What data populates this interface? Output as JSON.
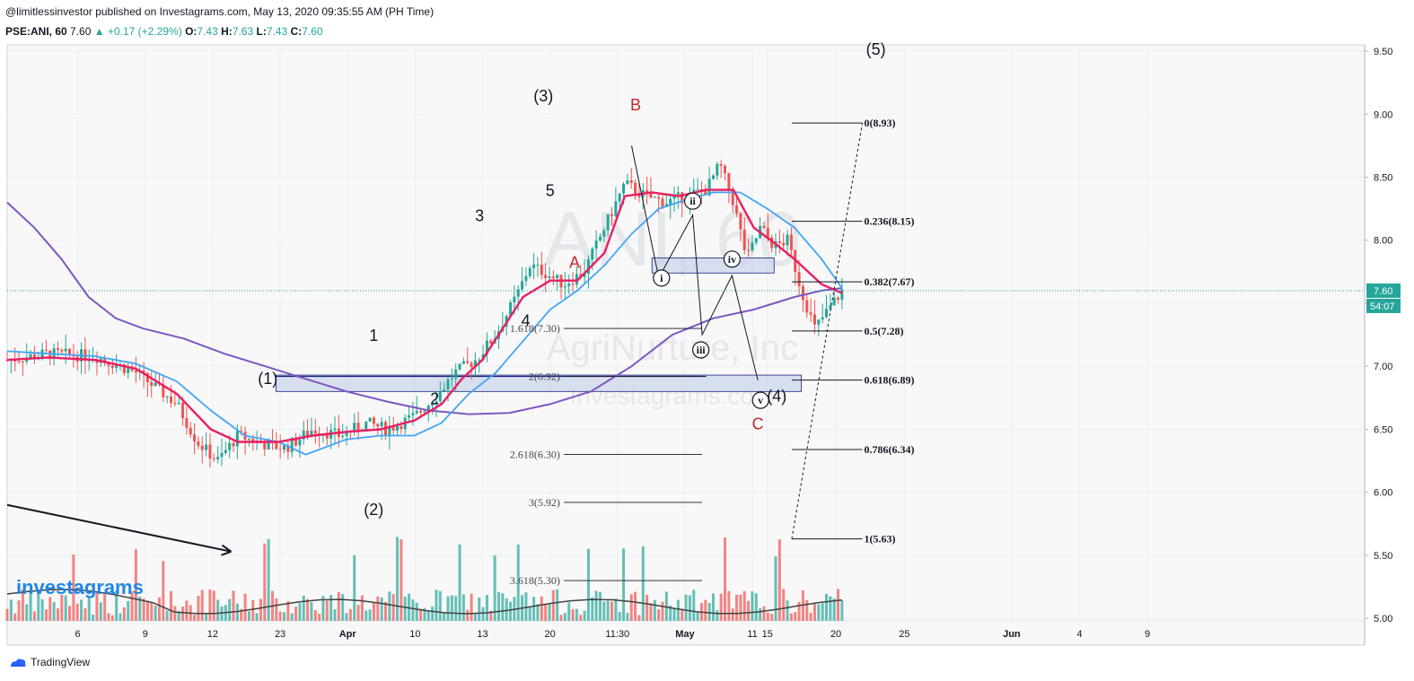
{
  "header": {
    "published": "@limitlessinvestor published on Investagrams.com, May 13, 2020 09:35:55 AM (PH Time)",
    "symbol": "PSE:ANI, 60",
    "last": "7.60",
    "change": "+0.17 (+2.29%)",
    "o_label": "O:",
    "o": "7.43",
    "h_label": "H:",
    "h": "7.63",
    "l_label": "L:",
    "l": "7.43",
    "c_label": "C:",
    "c": "7.60"
  },
  "footer": {
    "brand": "TradingView",
    "watermark_logo": "investagrams"
  },
  "watermark": {
    "line1": "ANI, 60",
    "line2": "AgriNurture, Inc",
    "line3": "Investagrams.com"
  },
  "colors": {
    "up": "#26a69a",
    "down": "#ef5350",
    "ema_fast": "#e91e63",
    "ema_mid": "#42a5f5",
    "ema_slow": "#7e57c2",
    "zone_fill": "#c5cfe8",
    "zone_stroke": "#1a237e",
    "wave_red": "#c62828",
    "price_line": "#26a69a"
  },
  "chart_data": {
    "type": "candlestick",
    "instrument": "PSE:ANI",
    "interval": "60",
    "ylim": [
      4.98,
      9.55
    ],
    "y_ticks": [
      "9.50",
      "9.00",
      "8.50",
      "8.00",
      "7.50",
      "7.00",
      "6.50",
      "6.00",
      "5.50",
      "5.00"
    ],
    "x_ticks": [
      "6",
      "9",
      "12",
      "23",
      "Apr",
      "10",
      "13",
      "20",
      "11:30",
      "May",
      "11",
      "15",
      "20",
      "25",
      "Jun",
      "4",
      "9"
    ],
    "last_price_label": "7.60",
    "countdown_label": "54:07",
    "price_path": [
      [
        0,
        7.05
      ],
      [
        0.03,
        7.1
      ],
      [
        0.065,
        7.08
      ],
      [
        0.095,
        6.95
      ],
      [
        0.125,
        6.7
      ],
      [
        0.14,
        6.4
      ],
      [
        0.155,
        6.25
      ],
      [
        0.17,
        6.45
      ],
      [
        0.19,
        6.38
      ],
      [
        0.205,
        6.35
      ],
      [
        0.225,
        6.5
      ],
      [
        0.245,
        6.45
      ],
      [
        0.265,
        6.55
      ],
      [
        0.28,
        6.5
      ],
      [
        0.3,
        6.6
      ],
      [
        0.315,
        6.75
      ],
      [
        0.33,
        6.95
      ],
      [
        0.345,
        7.05
      ],
      [
        0.36,
        7.25
      ],
      [
        0.375,
        7.55
      ],
      [
        0.385,
        7.8
      ],
      [
        0.395,
        7.75
      ],
      [
        0.41,
        7.65
      ],
      [
        0.425,
        7.75
      ],
      [
        0.44,
        8.1
      ],
      [
        0.455,
        8.45
      ],
      [
        0.47,
        8.35
      ],
      [
        0.485,
        8.3
      ],
      [
        0.5,
        8.35
      ],
      [
        0.515,
        8.4
      ],
      [
        0.525,
        8.6
      ],
      [
        0.535,
        8.3
      ],
      [
        0.545,
        7.85
      ],
      [
        0.555,
        8.1
      ],
      [
        0.565,
        7.95
      ],
      [
        0.575,
        8.0
      ],
      [
        0.585,
        7.6
      ],
      [
        0.595,
        7.3
      ],
      [
        0.605,
        7.45
      ],
      [
        0.615,
        7.6
      ]
    ],
    "ema_fast": [
      [
        0,
        7.05
      ],
      [
        0.03,
        7.07
      ],
      [
        0.065,
        7.05
      ],
      [
        0.095,
        6.98
      ],
      [
        0.125,
        6.78
      ],
      [
        0.15,
        6.5
      ],
      [
        0.17,
        6.4
      ],
      [
        0.2,
        6.4
      ],
      [
        0.225,
        6.45
      ],
      [
        0.25,
        6.48
      ],
      [
        0.275,
        6.5
      ],
      [
        0.3,
        6.57
      ],
      [
        0.32,
        6.7
      ],
      [
        0.335,
        6.9
      ],
      [
        0.35,
        7.05
      ],
      [
        0.365,
        7.3
      ],
      [
        0.38,
        7.55
      ],
      [
        0.4,
        7.68
      ],
      [
        0.42,
        7.68
      ],
      [
        0.44,
        7.9
      ],
      [
        0.455,
        8.35
      ],
      [
        0.475,
        8.38
      ],
      [
        0.495,
        8.35
      ],
      [
        0.515,
        8.4
      ],
      [
        0.535,
        8.4
      ],
      [
        0.55,
        8.1
      ],
      [
        0.565,
        7.98
      ],
      [
        0.58,
        7.85
      ],
      [
        0.6,
        7.65
      ],
      [
        0.615,
        7.58
      ]
    ],
    "ema_mid": [
      [
        0,
        7.12
      ],
      [
        0.03,
        7.1
      ],
      [
        0.065,
        7.08
      ],
      [
        0.095,
        7.02
      ],
      [
        0.125,
        6.88
      ],
      [
        0.15,
        6.65
      ],
      [
        0.175,
        6.45
      ],
      [
        0.2,
        6.4
      ],
      [
        0.22,
        6.3
      ],
      [
        0.25,
        6.42
      ],
      [
        0.275,
        6.45
      ],
      [
        0.3,
        6.45
      ],
      [
        0.32,
        6.55
      ],
      [
        0.34,
        6.78
      ],
      [
        0.36,
        6.95
      ],
      [
        0.38,
        7.2
      ],
      [
        0.4,
        7.45
      ],
      [
        0.42,
        7.6
      ],
      [
        0.44,
        7.8
      ],
      [
        0.46,
        8.05
      ],
      [
        0.48,
        8.25
      ],
      [
        0.5,
        8.32
      ],
      [
        0.52,
        8.38
      ],
      [
        0.54,
        8.38
      ],
      [
        0.56,
        8.25
      ],
      [
        0.58,
        8.1
      ],
      [
        0.6,
        7.85
      ],
      [
        0.615,
        7.62
      ]
    ],
    "ema_slow": [
      [
        0,
        8.3
      ],
      [
        0.02,
        8.1
      ],
      [
        0.04,
        7.85
      ],
      [
        0.06,
        7.55
      ],
      [
        0.08,
        7.38
      ],
      [
        0.1,
        7.3
      ],
      [
        0.13,
        7.22
      ],
      [
        0.16,
        7.1
      ],
      [
        0.19,
        7.0
      ],
      [
        0.22,
        6.9
      ],
      [
        0.25,
        6.8
      ],
      [
        0.28,
        6.72
      ],
      [
        0.31,
        6.65
      ],
      [
        0.34,
        6.62
      ],
      [
        0.37,
        6.63
      ],
      [
        0.4,
        6.7
      ],
      [
        0.43,
        6.8
      ],
      [
        0.46,
        7.0
      ],
      [
        0.49,
        7.25
      ],
      [
        0.52,
        7.38
      ],
      [
        0.55,
        7.45
      ],
      [
        0.58,
        7.55
      ],
      [
        0.6,
        7.6
      ],
      [
        0.615,
        7.62
      ]
    ],
    "fib_retracement": [
      {
        "label": "0(8.93)",
        "value": 8.93
      },
      {
        "label": "0.236(8.15)",
        "value": 8.15
      },
      {
        "label": "0.382(7.67)",
        "value": 7.67
      },
      {
        "label": "0.5(7.28)",
        "value": 7.28
      },
      {
        "label": "0.618(6.89)",
        "value": 6.89
      },
      {
        "label": "0.786(6.34)",
        "value": 6.34
      },
      {
        "label": "1(5.63)",
        "value": 5.63
      }
    ],
    "fib_extension": [
      {
        "label": "1.618(7.30)",
        "value": 7.3
      },
      {
        "label": "2(6.92)",
        "value": 6.92
      },
      {
        "label": "2.618(6.30)",
        "value": 6.3
      },
      {
        "label": "3(5.92)",
        "value": 5.92
      },
      {
        "label": "3.618(5.30)",
        "value": 5.3
      }
    ],
    "wave_labels": [
      {
        "text": "(5)",
        "x": 0.64,
        "y": 9.47,
        "color": "black"
      },
      {
        "text": "(3)",
        "x": 0.395,
        "y": 9.1,
        "color": "black"
      },
      {
        "text": "B",
        "x": 0.463,
        "y": 9.03,
        "color": "red"
      },
      {
        "text": "5",
        "x": 0.4,
        "y": 8.35,
        "color": "black"
      },
      {
        "text": "3",
        "x": 0.348,
        "y": 8.15,
        "color": "black"
      },
      {
        "text": "A",
        "x": 0.418,
        "y": 7.78,
        "color": "red"
      },
      {
        "text": "4",
        "x": 0.382,
        "y": 7.32,
        "color": "black"
      },
      {
        "text": "1",
        "x": 0.27,
        "y": 7.2,
        "color": "black"
      },
      {
        "text": "(1)",
        "x": 0.192,
        "y": 6.86,
        "color": "black"
      },
      {
        "text": "2",
        "x": 0.315,
        "y": 6.7,
        "color": "black"
      },
      {
        "text": "(2)",
        "x": 0.27,
        "y": 5.82,
        "color": "black"
      },
      {
        "text": "C",
        "x": 0.553,
        "y": 6.5,
        "color": "red"
      },
      {
        "text": "(4)",
        "x": 0.567,
        "y": 6.72,
        "color": "black"
      }
    ],
    "circle_labels": [
      {
        "text": "i",
        "x": 0.482,
        "y": 7.7
      },
      {
        "text": "ii",
        "x": 0.505,
        "y": 8.31
      },
      {
        "text": "iii",
        "x": 0.511,
        "y": 7.13
      },
      {
        "text": "iv",
        "x": 0.534,
        "y": 7.85
      },
      {
        "text": "v",
        "x": 0.555,
        "y": 6.73
      }
    ],
    "zones": [
      {
        "x0": 0.198,
        "x1": 0.585,
        "y0": 6.8,
        "y1": 6.93
      },
      {
        "x0": 0.475,
        "x1": 0.565,
        "y0": 7.74,
        "y1": 7.86
      }
    ],
    "trend_arrow": {
      "x0": 0,
      "y0": 5.9,
      "x1": 0.165,
      "y1": 5.53
    }
  }
}
